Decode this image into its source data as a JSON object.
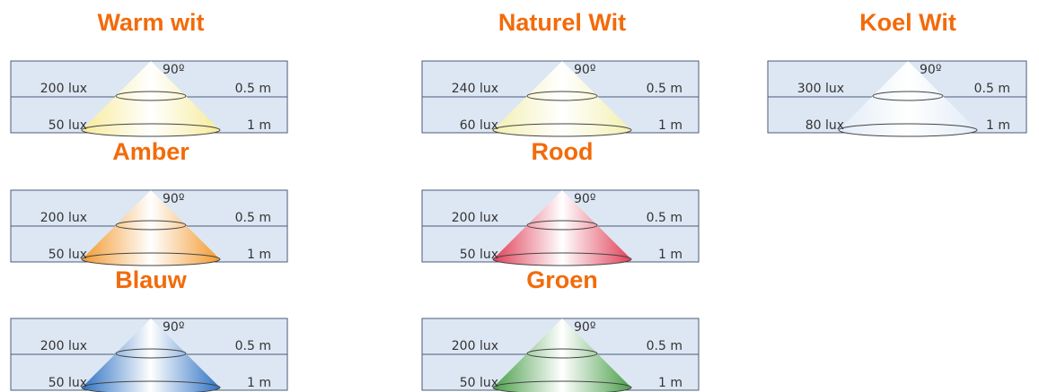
{
  "panels": [
    {
      "title": "Warm wit",
      "angle": "90º",
      "lux_near": "200 lux",
      "dist_near": "0.5 m",
      "lux_far": "50 lux",
      "dist_far": "1 m",
      "color": "#f7eb9a"
    },
    {
      "title": "Naturel Wit",
      "angle": "90º",
      "lux_near": "240 lux",
      "dist_near": "0.5 m",
      "lux_far": "60 lux",
      "dist_far": "1 m",
      "color": "#f2f0b0"
    },
    {
      "title": "Koel Wit",
      "angle": "90º",
      "lux_near": "300 lux",
      "dist_near": "0.5 m",
      "lux_far": "80 lux",
      "dist_far": "1 m",
      "color": "#e2ecf7"
    },
    {
      "title": "Amber",
      "angle": "90º",
      "lux_near": "200 lux",
      "dist_near": "0.5 m",
      "lux_far": "50 lux",
      "dist_far": "1 m",
      "color": "#f29a30"
    },
    {
      "title": "Rood",
      "angle": "90º",
      "lux_near": "200 lux",
      "dist_near": "0.5 m",
      "lux_far": "50 lux",
      "dist_far": "1 m",
      "color": "#e04058"
    },
    {
      "title": "Blauw",
      "angle": "90º",
      "lux_near": "200 lux",
      "dist_near": "0.5 m",
      "lux_far": "50 lux",
      "dist_far": "1 m",
      "color": "#2e72c4"
    },
    {
      "title": "Groen",
      "angle": "90º",
      "lux_near": "200 lux",
      "dist_near": "0.5 m",
      "lux_far": "50 lux",
      "dist_far": "1 m",
      "color": "#4a9e4a"
    }
  ]
}
